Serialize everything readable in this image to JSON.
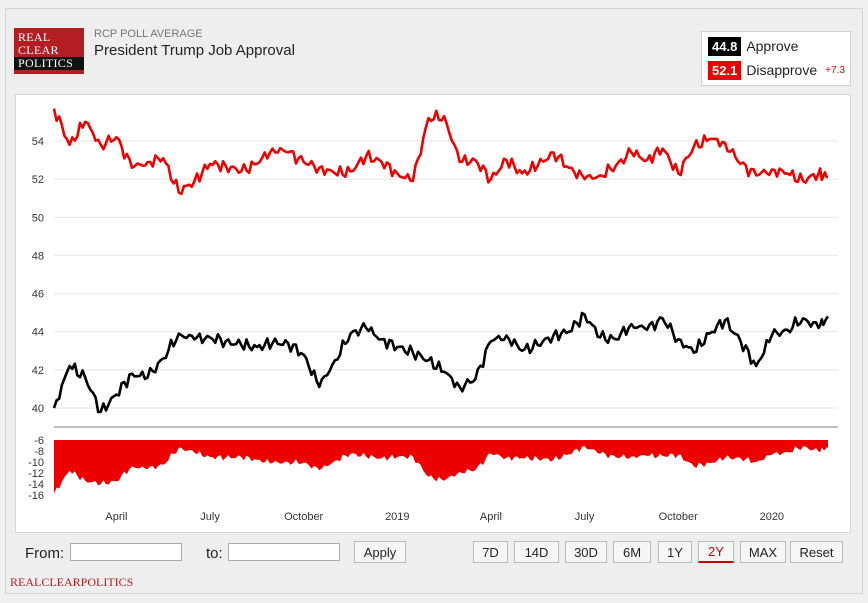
{
  "header": {
    "logo_lines": [
      "REAL",
      "CLEAR",
      "POLITICS"
    ],
    "kicker": "RCP POLL AVERAGE",
    "title": "President Trump Job Approval"
  },
  "legend": {
    "approve_value": "44.8",
    "approve_label": "Approve",
    "disapprove_value": "52.1",
    "disapprove_label": "Disapprove",
    "disapprove_change": "+7.3"
  },
  "controls": {
    "from_label": "From:",
    "to_label": "to:",
    "apply_label": "Apply",
    "ranges": [
      "7D",
      "14D",
      "30D",
      "6M",
      "1Y",
      "2Y",
      "MAX",
      "Reset"
    ],
    "active_range": "2Y"
  },
  "footer": {
    "brand": "REALCLEARPOLITICS"
  },
  "colors": {
    "approve": "#000000",
    "disapprove": "#ee0000",
    "spread_fill": "#ee0000",
    "brand": "#b41e23"
  },
  "chart_data": {
    "type": "line",
    "title": "President Trump Job Approval",
    "x_tick_labels": [
      "April",
      "July",
      "October",
      "2019",
      "April",
      "July",
      "October",
      "2020"
    ],
    "ylim": [
      39.5,
      56.5
    ],
    "y_ticks": [
      40,
      42,
      44,
      46,
      48,
      50,
      52,
      54
    ],
    "grid": true,
    "legend_position": "top-right",
    "x_months": [
      0,
      0.5,
      1,
      1.5,
      2,
      2.5,
      3,
      3.5,
      4,
      4.5,
      5,
      5.5,
      6,
      6.5,
      7,
      7.5,
      8,
      8.5,
      9,
      9.5,
      10,
      10.5,
      11,
      11.5,
      12,
      12.5,
      13,
      13.5,
      14,
      14.5,
      15,
      15.5,
      16,
      16.5,
      17,
      17.5,
      18,
      18.5,
      19,
      19.5,
      20,
      20.5,
      21,
      21.5,
      22,
      22.5,
      23,
      23.5,
      24,
      24.5,
      24.8
    ],
    "series": [
      {
        "name": "Approve",
        "color": "#000000",
        "values": [
          40.0,
          42.2,
          41.6,
          39.8,
          40.7,
          41.8,
          41.6,
          42.6,
          43.9,
          43.6,
          43.7,
          43.5,
          43.3,
          43.2,
          43.4,
          43.4,
          42.8,
          41.1,
          42.5,
          43.9,
          44.2,
          43.6,
          43.2,
          42.9,
          42.5,
          41.9,
          41.1,
          41.5,
          43.5,
          43.8,
          43.0,
          43.3,
          43.8,
          44.0,
          44.9,
          43.7,
          43.6,
          44.4,
          44.1,
          44.7,
          43.6,
          42.9,
          43.9,
          44.6,
          43.5,
          42.2,
          43.8,
          44.1,
          44.7,
          44.2,
          44.8
        ]
      },
      {
        "name": "Disapprove",
        "color": "#ee0000",
        "values": [
          55.7,
          53.8,
          55.0,
          53.8,
          54.2,
          52.6,
          52.9,
          53.1,
          51.3,
          51.9,
          52.8,
          52.7,
          52.4,
          52.8,
          53.6,
          53.4,
          52.9,
          52.6,
          52.3,
          52.4,
          53.2,
          52.9,
          52.3,
          51.9,
          55.2,
          55.3,
          52.9,
          53.0,
          52.0,
          53.0,
          52.3,
          52.7,
          53.4,
          52.6,
          52.0,
          52.2,
          52.7,
          53.4,
          53.0,
          53.6,
          52.3,
          53.7,
          54.1,
          53.9,
          52.8,
          52.2,
          52.5,
          52.3,
          51.9,
          52.3,
          52.1
        ]
      }
    ],
    "spread": {
      "name": "Spread",
      "ylim": [
        -16,
        -6
      ],
      "y_ticks": [
        -6,
        -8,
        -10,
        -12,
        -14,
        -16
      ]
    }
  }
}
